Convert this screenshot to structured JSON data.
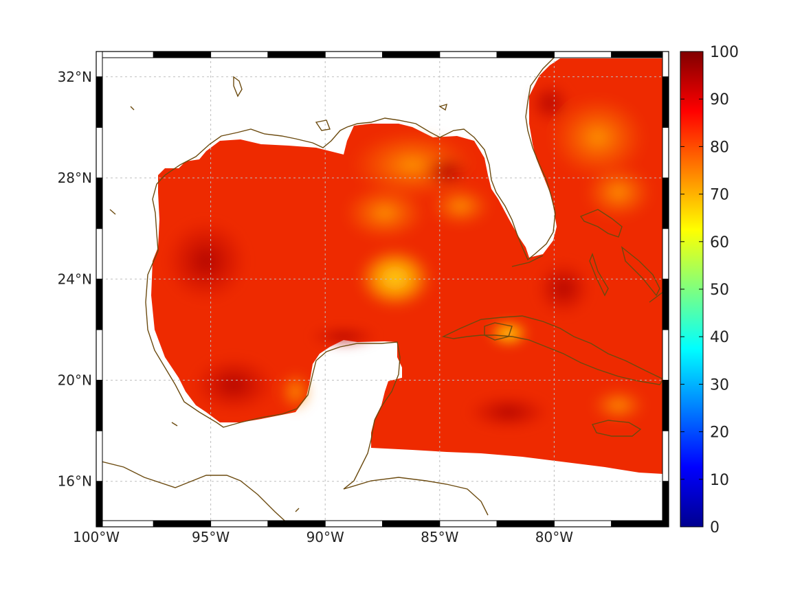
{
  "map": {
    "type": "heatmap-map",
    "lon_range": [
      -100,
      -75
    ],
    "lat_range": [
      14.2,
      33
    ],
    "lon_ticks": [
      {
        "value": -100,
        "label": "100°W"
      },
      {
        "value": -95,
        "label": "95°W"
      },
      {
        "value": -90,
        "label": "90°W"
      },
      {
        "value": -85,
        "label": "85°W"
      },
      {
        "value": -80,
        "label": "80°W"
      }
    ],
    "lat_ticks": [
      {
        "value": 32,
        "label": "32°N"
      },
      {
        "value": 28,
        "label": "28°N"
      },
      {
        "value": 24,
        "label": "24°N"
      },
      {
        "value": 20,
        "label": "20°N"
      },
      {
        "value": 16,
        "label": "16°N"
      }
    ],
    "grid": true,
    "coastline_color": "#6b4a0f",
    "colormap": "jet"
  },
  "colorbar": {
    "range": [
      0,
      100
    ],
    "ticks": [
      "0",
      "10",
      "20",
      "30",
      "40",
      "50",
      "60",
      "70",
      "80",
      "90",
      "100"
    ],
    "placement": "right"
  }
}
